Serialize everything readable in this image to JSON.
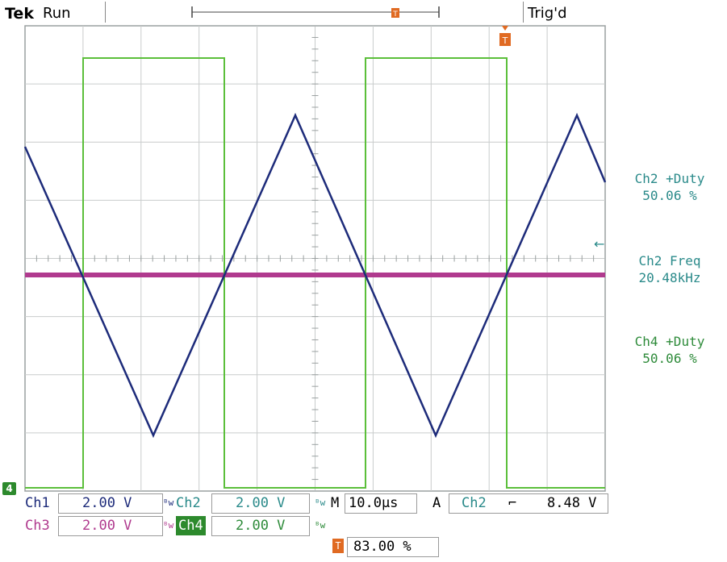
{
  "header": {
    "brand": "Tek",
    "run_state": "Run",
    "trigger_state": "Trig'd"
  },
  "colors": {
    "grid": "#9aa0a0",
    "ch1": "#1d2b7a",
    "ch3": "#b03a8e",
    "ch4": "#5bbf3a",
    "measure_text": "#2a8a8a",
    "ch4_measure_text": "#2e8b3a",
    "trigger_marker": "#e06a22"
  },
  "measurements": [
    {
      "label": "Ch2 +Duty",
      "value": "50.06 %"
    },
    {
      "label": "Ch2 Freq",
      "value": "20.48kHz"
    },
    {
      "label": "Ch4 +Duty",
      "value": "50.06 %"
    }
  ],
  "channels": {
    "ch1": {
      "label": "Ch1",
      "scale": "2.00 V"
    },
    "ch2": {
      "label": "Ch2",
      "scale": "2.00 V"
    },
    "ch3": {
      "label": "Ch3",
      "scale": "2.00 V"
    },
    "ch4": {
      "label": "Ch4",
      "scale": "2.00 V"
    }
  },
  "timebase": {
    "prefix": "M",
    "value": "10.0µs"
  },
  "trigger": {
    "mode": "A",
    "source": "Ch2",
    "slope_icon": "falling-edge-icon",
    "level": "8.48 V",
    "position": "83.00 %"
  },
  "ground_marker": "4",
  "icons": {
    "bandwidth": "bw-limit-icon",
    "trigger_pos": "trigger-position-icon"
  }
}
